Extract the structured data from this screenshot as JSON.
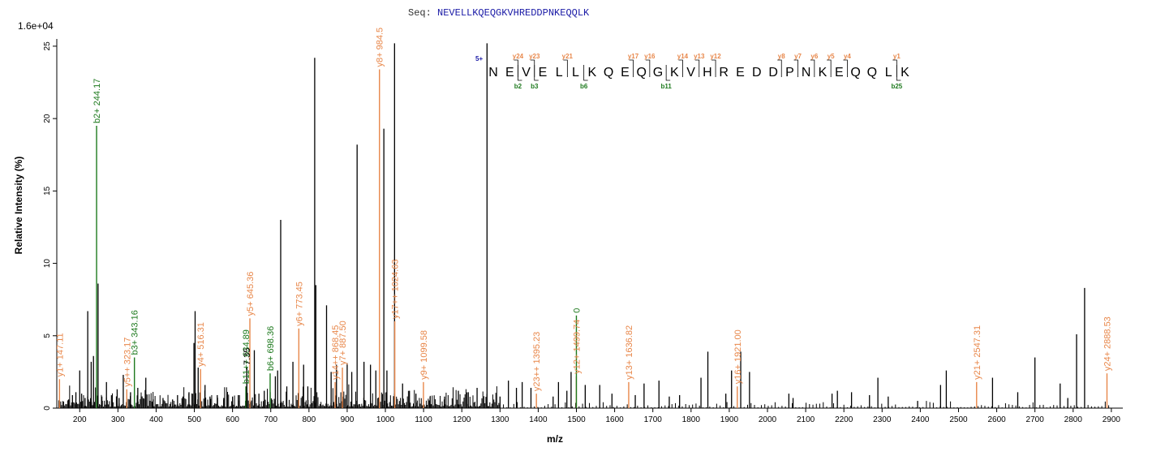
{
  "header": {
    "seq_label": "Seq:",
    "sequence": "NEVELLKQEQGKVHREDDPNKEQQLK",
    "scale": "1.6e+04"
  },
  "colors": {
    "y_ion": "#e8874a",
    "b_ion": "#1e7a1e",
    "other": "#000000",
    "charge": "#1a1aa6"
  },
  "chart_data": {
    "type": "bar",
    "xlabel": "m/z",
    "ylabel": "Relative   Intensity (%)",
    "xlim": [
      140,
      2930
    ],
    "ylim": [
      0,
      25.5
    ],
    "x_ticks": [
      200,
      300,
      400,
      500,
      600,
      700,
      800,
      900,
      1000,
      1100,
      1200,
      1300,
      1400,
      1500,
      1600,
      1700,
      1800,
      1900,
      2000,
      2100,
      2200,
      2300,
      2400,
      2500,
      2600,
      2700,
      2800,
      2900
    ],
    "y_ticks": [
      0,
      5,
      10,
      15,
      20,
      25
    ],
    "labeled_peaks": [
      {
        "mz": 147.11,
        "intensity": 2.0,
        "ion": "y",
        "label": "y1+ 147.11"
      },
      {
        "mz": 244.17,
        "intensity": 19.5,
        "ion": "b",
        "label": "b2+ 244.17"
      },
      {
        "mz": 323.17,
        "intensity": 1.3,
        "ion": "y",
        "label": "y5++ 323.17"
      },
      {
        "mz": 343.16,
        "intensity": 3.5,
        "ion": "b",
        "label": "b3+ 343.16"
      },
      {
        "mz": 516.31,
        "intensity": 2.7,
        "ion": "y",
        "label": "y4+ 516.31"
      },
      {
        "mz": 634.89,
        "intensity": 1.5,
        "ion": "b",
        "label": "b11++ 634.89"
      },
      {
        "mz": 637.35,
        "intensity": 2.8,
        "ion": "other",
        "label": "7.35"
      },
      {
        "mz": 645.36,
        "intensity": 6.2,
        "ion": "y",
        "label": "y5+ 645.36"
      },
      {
        "mz": 698.36,
        "intensity": 2.4,
        "ion": "b",
        "label": "b6+ 698.36"
      },
      {
        "mz": 773.45,
        "intensity": 5.5,
        "ion": "y",
        "label": "y6+ 773.45"
      },
      {
        "mz": 868.45,
        "intensity": 1.8,
        "ion": "y",
        "label": "y14++ 868.45"
      },
      {
        "mz": 887.5,
        "intensity": 2.8,
        "ion": "y",
        "label": "y7+ 887.50"
      },
      {
        "mz": 984.5,
        "intensity": 23.4,
        "ion": "y",
        "label": "y8+ 984.5"
      },
      {
        "mz": 1024.63,
        "intensity": 6.0,
        "ion": "y",
        "label": "y17++ 1024.63"
      },
      {
        "mz": 1099.58,
        "intensity": 1.8,
        "ion": "y",
        "label": "y9+ 1099.58"
      },
      {
        "mz": 1395.23,
        "intensity": 1.0,
        "ion": "y",
        "label": "y23++ 1395.23"
      },
      {
        "mz": 1499.74,
        "intensity": 2.2,
        "ion": "y",
        "label": "y12+ 1499.74"
      },
      {
        "mz": 1499.9,
        "intensity": 6.4,
        "ion": "b",
        "label": "0"
      },
      {
        "mz": 1636.82,
        "intensity": 1.8,
        "ion": "y",
        "label": "y13+ 1636.82"
      },
      {
        "mz": 1921.0,
        "intensity": 1.5,
        "ion": "y",
        "label": "y16+ 1921.00"
      },
      {
        "mz": 2547.31,
        "intensity": 1.8,
        "ion": "y",
        "label": "y21+ 2547.31"
      },
      {
        "mz": 2888.53,
        "intensity": 2.4,
        "ion": "y",
        "label": "y24+ 2888.53"
      }
    ],
    "tall_peaks": [
      [
        171,
        0.6
      ],
      [
        181,
        0.9
      ],
      [
        190,
        1.1
      ],
      [
        200,
        2.6
      ],
      [
        205,
        1.0
      ],
      [
        214,
        0.7
      ],
      [
        221,
        6.7
      ],
      [
        230,
        3.2
      ],
      [
        236,
        3.6
      ],
      [
        248,
        8.6
      ],
      [
        258,
        0.8
      ],
      [
        270,
        1.8
      ],
      [
        285,
        0.9
      ],
      [
        298,
        1.3
      ],
      [
        303,
        0.7
      ],
      [
        314,
        2.3
      ],
      [
        333,
        1.1
      ],
      [
        352,
        1.4
      ],
      [
        361,
        0.8
      ],
      [
        373,
        2.1
      ],
      [
        392,
        0.6
      ],
      [
        418,
        0.7
      ],
      [
        443,
        0.6
      ],
      [
        456,
        0.9
      ],
      [
        470,
        0.8
      ],
      [
        486,
        1.1
      ],
      [
        499,
        4.5
      ],
      [
        502,
        6.7
      ],
      [
        510,
        2.8
      ],
      [
        528,
        1.6
      ],
      [
        541,
        0.8
      ],
      [
        560,
        0.9
      ],
      [
        577,
        0.7
      ],
      [
        600,
        0.8
      ],
      [
        615,
        0.9
      ],
      [
        657,
        4.0
      ],
      [
        669,
        1.0
      ],
      [
        683,
        1.2
      ],
      [
        712,
        2.2
      ],
      [
        718,
        2.6
      ],
      [
        726,
        13.0
      ],
      [
        742,
        1.5
      ],
      [
        758,
        3.2
      ],
      [
        786,
        3.0
      ],
      [
        797,
        1.5
      ],
      [
        815,
        24.2
      ],
      [
        818,
        8.5
      ],
      [
        846,
        7.1
      ],
      [
        858,
        2.5
      ],
      [
        872,
        3.0
      ],
      [
        900,
        3.1
      ],
      [
        912,
        2.5
      ],
      [
        926,
        18.2
      ],
      [
        944,
        3.2
      ],
      [
        961,
        3.0
      ],
      [
        975,
        2.6
      ],
      [
        996,
        19.3
      ],
      [
        1004,
        2.6
      ],
      [
        1024,
        25.2
      ],
      [
        1045,
        1.7
      ],
      [
        1063,
        1.2
      ],
      [
        1080,
        1.0
      ],
      [
        1117,
        0.8
      ],
      [
        1155,
        0.8
      ],
      [
        1191,
        1.2
      ],
      [
        1217,
        1.1
      ],
      [
        1240,
        1.4
      ],
      [
        1266,
        25.2
      ],
      [
        1300,
        0.8
      ],
      [
        1322,
        1.9
      ],
      [
        1343,
        1.4
      ],
      [
        1358,
        1.8
      ],
      [
        1381,
        1.4
      ],
      [
        1439,
        0.8
      ],
      [
        1453,
        1.8
      ],
      [
        1475,
        1.2
      ],
      [
        1486,
        2.5
      ],
      [
        1523,
        1.6
      ],
      [
        1561,
        1.6
      ],
      [
        1593,
        1.0
      ],
      [
        1654,
        0.9
      ],
      [
        1677,
        1.7
      ],
      [
        1716,
        1.9
      ],
      [
        1743,
        0.8
      ],
      [
        1770,
        0.9
      ],
      [
        1826,
        2.1
      ],
      [
        1844,
        3.9
      ],
      [
        1891,
        1.0
      ],
      [
        1906,
        2.6
      ],
      [
        1930,
        3.9
      ],
      [
        1953,
        2.5
      ],
      [
        2056,
        1.0
      ],
      [
        2067,
        0.7
      ],
      [
        2169,
        1.0
      ],
      [
        2183,
        1.2
      ],
      [
        2220,
        1.1
      ],
      [
        2267,
        0.9
      ],
      [
        2289,
        2.1
      ],
      [
        2316,
        0.8
      ],
      [
        2393,
        0.5
      ],
      [
        2453,
        1.6
      ],
      [
        2468,
        2.6
      ],
      [
        2589,
        2.1
      ],
      [
        2655,
        1.1
      ],
      [
        2700,
        3.5
      ],
      [
        2766,
        1.7
      ],
      [
        2786,
        0.7
      ],
      [
        2809,
        5.1
      ],
      [
        2830,
        8.3
      ]
    ],
    "fragment_map": {
      "charge": "5+",
      "residues": [
        "N",
        "E",
        "V",
        "E",
        "L",
        "L",
        "K",
        "Q",
        "E",
        "Q",
        "G",
        "K",
        "V",
        "H",
        "R",
        "E",
        "D",
        "D",
        "P",
        "N",
        "K",
        "E",
        "Q",
        "Q",
        "L",
        "K"
      ],
      "y_ions": [
        {
          "after": 2,
          "label": "y24"
        },
        {
          "after": 3,
          "label": "y23"
        },
        {
          "after": 5,
          "label": "y21"
        },
        {
          "after": 9,
          "label": "y17"
        },
        {
          "after": 10,
          "label": "y16"
        },
        {
          "after": 12,
          "label": "y14"
        },
        {
          "after": 13,
          "label": "y13"
        },
        {
          "after": 14,
          "label": "y12"
        },
        {
          "after": 18,
          "label": "y8"
        },
        {
          "after": 19,
          "label": "y7"
        },
        {
          "after": 20,
          "label": "y6"
        },
        {
          "after": 21,
          "label": "y5"
        },
        {
          "after": 22,
          "label": "y4"
        },
        {
          "after": 25,
          "label": "y1"
        }
      ],
      "b_ions": [
        {
          "after": 2,
          "label": "b2"
        },
        {
          "after": 3,
          "label": "b3"
        },
        {
          "after": 6,
          "label": "b6"
        },
        {
          "after": 11,
          "label": "b11"
        },
        {
          "after": 25,
          "label": "b25"
        }
      ]
    }
  }
}
